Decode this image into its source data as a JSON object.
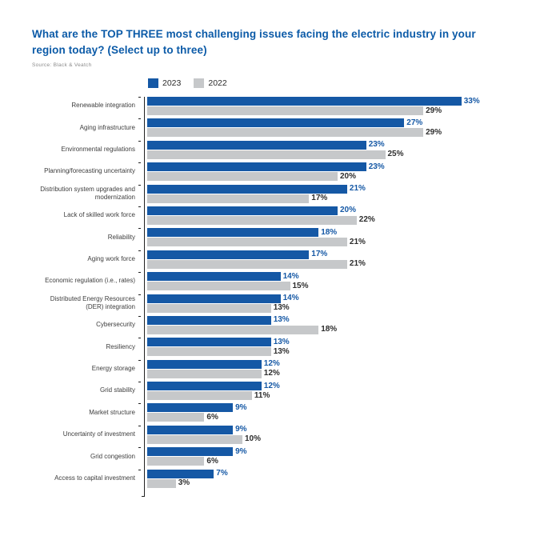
{
  "title": "What are the TOP THREE most challenging issues facing the electric industry in your region today? (Select up to three)",
  "source_note": "Source: Black & Veatch",
  "legend": {
    "items": [
      {
        "label": "2023",
        "color": "#1558A5"
      },
      {
        "label": "2022",
        "color": "#C6C8CA"
      }
    ]
  },
  "colors": {
    "title_blue": "#0C5BA8",
    "bar_blue": "#1558A5",
    "bar_gray": "#C6C8CA",
    "value_blue": "#1558A5",
    "value_dark": "#2D2D2D",
    "axis": "#222222"
  },
  "chart_data": {
    "type": "bar",
    "orientation": "horizontal",
    "title": "What are the TOP THREE most challenging issues facing the electric industry in your region today? (Select up to three)",
    "xlabel": "",
    "ylabel": "",
    "value_suffix": "%",
    "xlim": [
      0,
      35
    ],
    "grid": false,
    "legend_position": "top",
    "categories": [
      "Renewable integration",
      "Aging infrastructure",
      "Environmental regulations",
      "Planning/forecasting uncertainty",
      "Distribution system upgrades and modernization",
      "Lack of skilled work force",
      "Reliability",
      "Aging work force",
      "Economic regulation (i.e., rates)",
      "Distributed Energy Resources (DER) integration",
      "Cybersecurity",
      "Resiliency",
      "Energy storage",
      "Grid stability",
      "Market structure",
      "Uncertainty of investment",
      "Grid congestion",
      "Access to capital investment"
    ],
    "series": [
      {
        "name": "2023",
        "color": "#1558A5",
        "values": [
          33,
          27,
          23,
          23,
          21,
          20,
          18,
          17,
          14,
          14,
          13,
          13,
          12,
          12,
          9,
          9,
          9,
          7
        ]
      },
      {
        "name": "2022",
        "color": "#C6C8CA",
        "values": [
          29,
          29,
          25,
          20,
          17,
          22,
          21,
          21,
          15,
          13,
          18,
          13,
          12,
          11,
          6,
          10,
          6,
          3
        ]
      }
    ]
  }
}
